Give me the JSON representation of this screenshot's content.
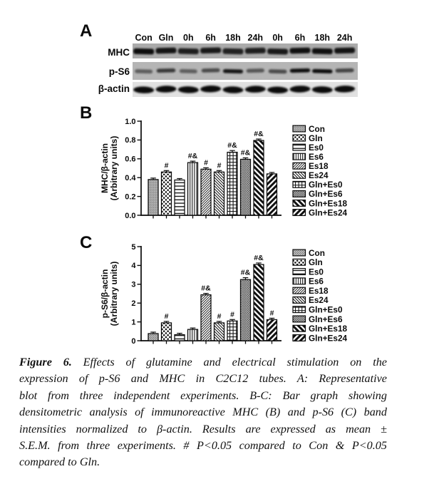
{
  "figure": {
    "panelA": {
      "label": "A",
      "lanes": [
        "Con",
        "Gln",
        "0h",
        "6h",
        "18h",
        "24h",
        "0h",
        "6h",
        "18h",
        "24h"
      ],
      "rows": [
        {
          "name": "MHC",
          "intensities": [
            0.92,
            0.88,
            0.82,
            0.85,
            0.8,
            0.82,
            0.85,
            0.9,
            0.9,
            0.88
          ]
        },
        {
          "name": "p-S6",
          "intensities": [
            0.48,
            0.68,
            0.48,
            0.58,
            0.88,
            0.52,
            0.58,
            0.92,
            0.93,
            0.62
          ]
        },
        {
          "name": "β-actin",
          "intensities": [
            0.95,
            0.95,
            0.95,
            0.95,
            0.95,
            0.95,
            0.95,
            0.95,
            0.95,
            0.95
          ]
        }
      ]
    },
    "panelB": {
      "label": "B"
    },
    "panelC": {
      "label": "C"
    }
  },
  "chart_data": [
    {
      "id": "B",
      "type": "bar",
      "categories": [
        "Con",
        "Gln",
        "Es0",
        "Es6",
        "Es18",
        "Es24",
        "Gln+Es0",
        "Gln+Es6",
        "Gln+Es18",
        "Gln+Es24"
      ],
      "values": [
        0.38,
        0.46,
        0.375,
        0.56,
        0.49,
        0.46,
        0.67,
        0.595,
        0.795,
        0.44
      ],
      "errors": [
        0.012,
        0.015,
        0.012,
        0.012,
        0.015,
        0.015,
        0.018,
        0.012,
        0.015,
        0.012
      ],
      "annotations": [
        "",
        "#",
        "",
        "#&",
        "#",
        "#",
        "#&",
        "#&",
        "#&",
        ""
      ],
      "title": "",
      "xlabel": "",
      "ylabel": "MHC/β-actin",
      "ylabel2": "(Arbitrary units)",
      "ylim": [
        0,
        1.0
      ],
      "yticks": [
        "0.0",
        "0.2",
        "0.4",
        "0.6",
        "0.8",
        "1.0"
      ],
      "legend_position": "right",
      "hatches": [
        "dots-fine-gray",
        "dots-checker",
        "hlines",
        "vlines",
        "diag-fwd-fine",
        "diag-back-fine",
        "grid",
        "dots-dense",
        "diag-back-bold",
        "diag-fwd-bold"
      ]
    },
    {
      "id": "C",
      "type": "bar",
      "categories": [
        "Con",
        "Gln",
        "Es0",
        "Es6",
        "Es18",
        "Es24",
        "Gln+Es0",
        "Gln+Es6",
        "Gln+Es18",
        "Gln+Es24"
      ],
      "values": [
        0.38,
        0.95,
        0.32,
        0.6,
        2.44,
        0.95,
        1.05,
        3.25,
        4.05,
        1.12
      ],
      "errors": [
        0.04,
        0.06,
        0.04,
        0.05,
        0.07,
        0.06,
        0.06,
        0.1,
        0.08,
        0.06
      ],
      "annotations": [
        "",
        "#",
        "",
        "",
        "#&",
        "#",
        "#",
        "#&",
        "#&",
        "#"
      ],
      "title": "",
      "xlabel": "",
      "ylabel": "p-S6/β-actin",
      "ylabel2": "(Arbitrary units)",
      "ylim": [
        0,
        5
      ],
      "yticks": [
        "0",
        "1",
        "2",
        "3",
        "4",
        "5"
      ],
      "legend_position": "right",
      "hatches": [
        "dots-fine-gray",
        "dots-checker",
        "hlines",
        "vlines",
        "diag-fwd-fine",
        "diag-back-fine",
        "grid",
        "dots-dense",
        "diag-back-bold",
        "diag-fwd-bold"
      ]
    }
  ],
  "caption": {
    "figure_label": "Figure 6.",
    "lines": [
      "Effects of glutamine and electrical stimulation on the",
      "expression of p-S6 and MHC in C2C12 tubes. A: Representative",
      "blot from three independent experiments. B-C: Bar graph showing",
      "densitometric analysis of immunoreactive MHC (B) and p-S6 (C) band",
      "intensities normalized to β-actin. Results are expressed as mean ±",
      "S.E.M. from three experiments. # P<0.05 compared to Con & P<0.05",
      "compared to Gln."
    ]
  },
  "colors": {
    "ink": "#0a0a0a",
    "strip_mhc": "#c0c0c0",
    "strip_ps6": "#cbcbcb",
    "strip_actin": "#f0f0f0"
  }
}
